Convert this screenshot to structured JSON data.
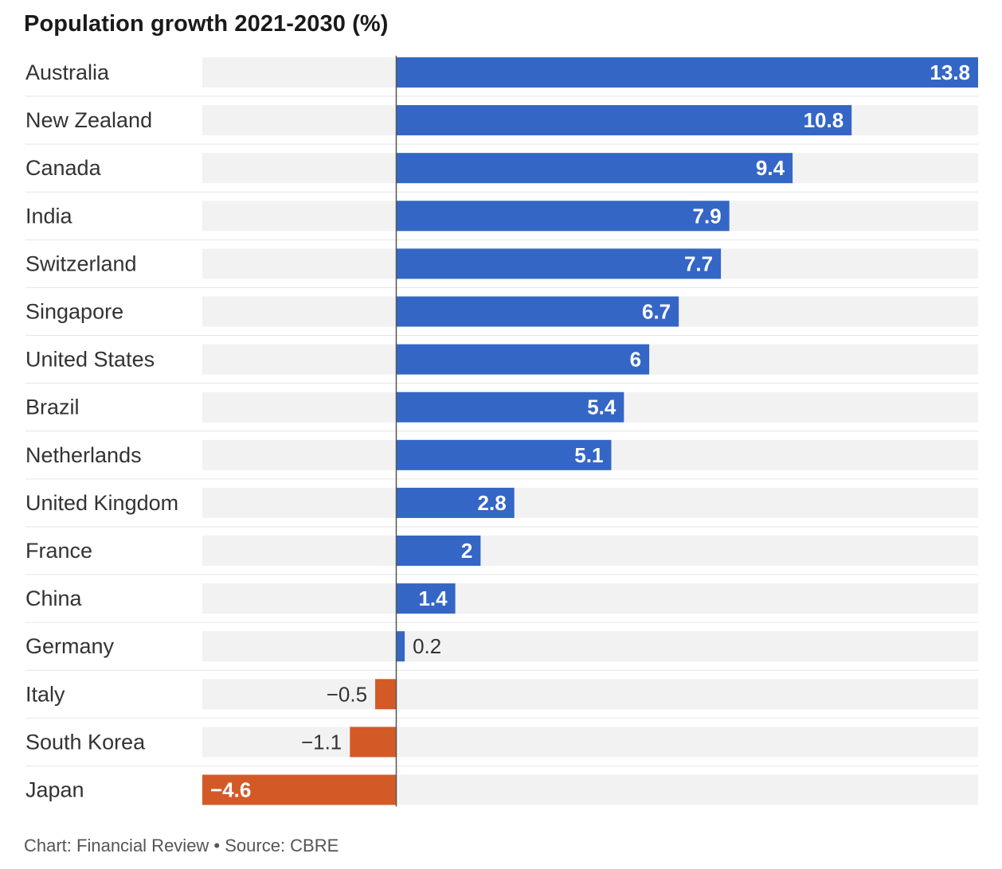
{
  "title": "Population growth 2021-2030 (%)",
  "footer": "Chart: Financial Review • Source: CBRE",
  "colors": {
    "positive": "#3466c5",
    "negative": "#d35a27",
    "track": "#f2f2f2",
    "divider": "#e6e6e6",
    "axis": "#555555",
    "label_text": "#333333",
    "value_inside": "#ffffff",
    "value_outside": "#333333"
  },
  "chart_data": {
    "type": "bar",
    "orientation": "horizontal",
    "title": "Population growth 2021-2030 (%)",
    "xlabel": "",
    "ylabel": "",
    "xlim": [
      -4.6,
      13.8
    ],
    "grid": false,
    "legend": "none",
    "categories": [
      "Australia",
      "New Zealand",
      "Canada",
      "India",
      "Switzerland",
      "Singapore",
      "United States",
      "Brazil",
      "Netherlands",
      "United Kingdom",
      "France",
      "China",
      "Germany",
      "Italy",
      "South Korea",
      "Japan"
    ],
    "values": [
      13.8,
      10.8,
      9.4,
      7.9,
      7.7,
      6.7,
      6,
      5.4,
      5.1,
      2.8,
      2,
      1.4,
      0.2,
      -0.5,
      -1.1,
      -4.6
    ],
    "value_labels": [
      "13.8",
      "10.8",
      "9.4",
      "7.9",
      "7.7",
      "6.7",
      "6",
      "5.4",
      "5.1",
      "2.8",
      "2",
      "1.4",
      "0.2",
      "−0.5",
      "−1.1",
      "−4.6"
    ]
  }
}
